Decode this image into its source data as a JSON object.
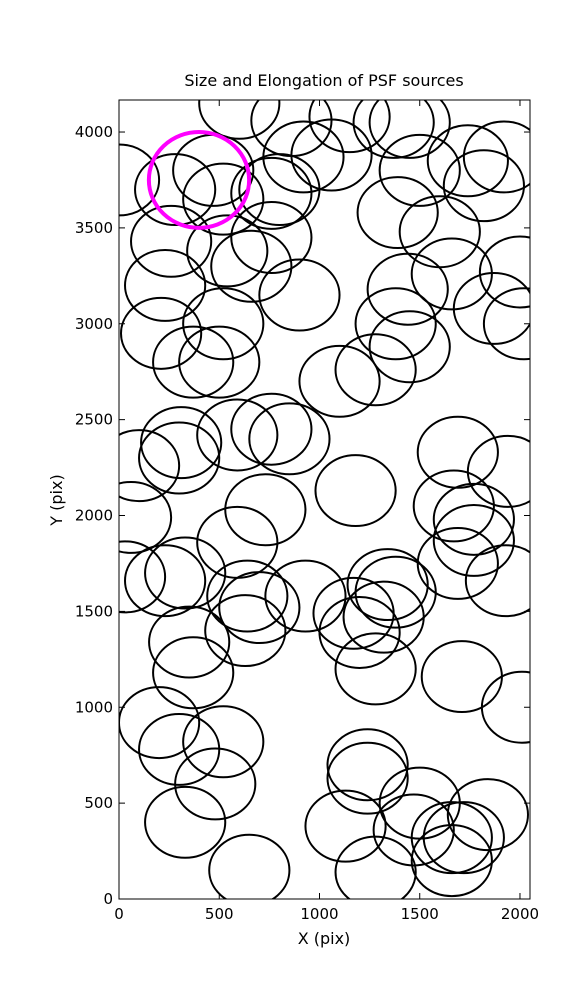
{
  "chart_data": {
    "type": "ellipse",
    "title": "Size and Elongation of PSF sources",
    "x_label": "X (pix)",
    "y_label": "Y (pix)",
    "xlim": [
      0,
      2050
    ],
    "ylim": [
      0,
      4167
    ],
    "xticks": [
      0,
      500,
      1000,
      1500,
      2000
    ],
    "yticks": [
      0,
      500,
      1000,
      1500,
      2000,
      2500,
      3000,
      3500,
      4000
    ],
    "series": [
      {
        "color": "#000000",
        "width": 400,
        "height": 370,
        "linewidth": 2,
        "x": [
          0,
          280,
          470,
          520,
          260,
          540,
          230,
          210,
          520,
          370,
          500,
          760,
          800,
          760,
          660,
          900,
          860,
          600,
          920,
          1060,
          1150,
          1370,
          1450,
          1500,
          1740,
          1920,
          1820,
          1390,
          1600,
          1660,
          1440,
          1380,
          1450,
          1280,
          1100,
          1870,
          2000,
          2020,
          100,
          60,
          30,
          310,
          300,
          590,
          760,
          850,
          730,
          590,
          330,
          230,
          640,
          700,
          630,
          930,
          1180,
          1170,
          1200,
          1340,
          1380,
          1320,
          1280,
          1690,
          1940,
          1670,
          1770,
          1770,
          1690,
          1930,
          1710,
          2010,
          350,
          370,
          200,
          300,
          520,
          480,
          330,
          650,
          1240,
          1240,
          1130,
          1280,
          1500,
          1470,
          1660,
          1660,
          1720,
          1840
        ],
        "y": [
          3750,
          3700,
          3800,
          3650,
          3430,
          3380,
          3200,
          2950,
          3000,
          2800,
          2800,
          3450,
          3700,
          3680,
          3300,
          3150,
          4060,
          4150,
          3870,
          3880,
          4080,
          4050,
          4050,
          3800,
          3850,
          3870,
          3720,
          3580,
          3480,
          3260,
          3180,
          3000,
          2880,
          2760,
          2700,
          3080,
          3270,
          3000,
          2260,
          1990,
          1680,
          2380,
          2300,
          2420,
          2450,
          2400,
          2030,
          1860,
          1700,
          1660,
          1580,
          1520,
          1400,
          1580,
          2130,
          1490,
          1390,
          1640,
          1600,
          1470,
          1200,
          2330,
          2230,
          2050,
          1980,
          1870,
          1750,
          1660,
          1160,
          1000,
          1340,
          1180,
          920,
          780,
          820,
          600,
          400,
          150,
          700,
          630,
          380,
          140,
          500,
          360,
          320,
          200,
          320,
          440
        ]
      },
      {
        "color": "#ff00ff",
        "width": 500,
        "height": 500,
        "linewidth": 4,
        "x": [
          399
        ],
        "y": [
          3750
        ]
      }
    ]
  }
}
